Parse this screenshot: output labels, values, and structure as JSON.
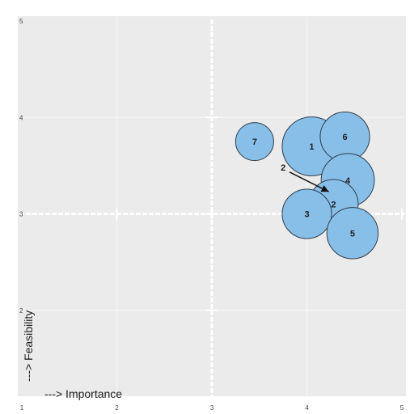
{
  "chart_data": {
    "type": "bubble",
    "title": "",
    "xlabel": "---> Importance",
    "ylabel": "---> Feasibility",
    "xlim": [
      1,
      5
    ],
    "ylim": [
      1,
      5
    ],
    "x_ticks": [
      "1",
      "2",
      "3",
      "4",
      "5"
    ],
    "y_ticks": [
      "1",
      "2",
      "3",
      "4",
      "5"
    ],
    "grid": true,
    "quadrant_lines": {
      "x": 3,
      "y": 3
    },
    "colors": {
      "bubble_fill": "#88bfe8",
      "bubble_stroke": "#2f3d4a",
      "panel": "#ebebeb",
      "grid": "#ffffff",
      "text": "#222222"
    },
    "points": [
      {
        "label": "7",
        "x": 3.45,
        "y": 3.75,
        "size": 0.2
      },
      {
        "label": "1",
        "x": 4.05,
        "y": 3.7,
        "size": 0.31
      },
      {
        "label": "6",
        "x": 4.4,
        "y": 3.8,
        "size": 0.26
      },
      {
        "label": "4",
        "x": 4.43,
        "y": 3.35,
        "size": 0.28
      },
      {
        "label": "2",
        "x": 4.28,
        "y": 3.1,
        "size": 0.26
      },
      {
        "label": "3",
        "x": 4.0,
        "y": 3.0,
        "size": 0.26
      },
      {
        "label": "5",
        "x": 4.48,
        "y": 2.8,
        "size": 0.27
      }
    ],
    "annotation": {
      "label": "2",
      "text_x": 3.75,
      "text_y": 3.45,
      "arrow_to_x": 4.23,
      "arrow_to_y": 3.23
    }
  }
}
